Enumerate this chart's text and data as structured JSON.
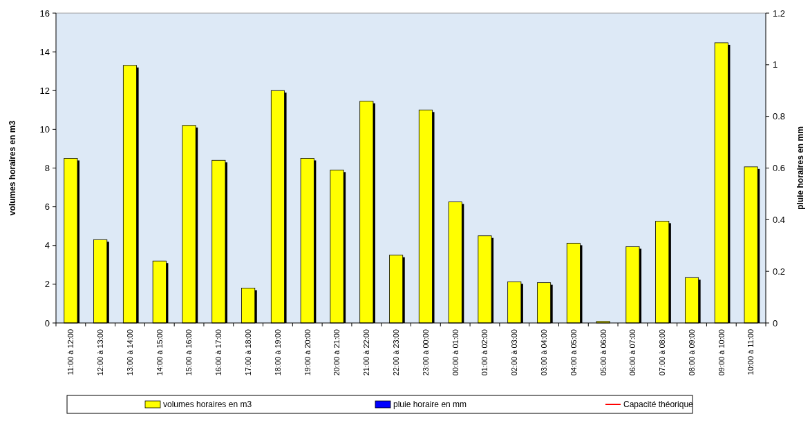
{
  "chart_data": {
    "type": "bar",
    "ylabel": "volumes horaires en m3",
    "y2label": "pluie horaires en mm",
    "categories": [
      "11:00 à 12:00",
      "12:00 à 13:00",
      "13:00 à 14:00",
      "14:00 à 15:00",
      "15:00 à 16:00",
      "16:00 à 17:00",
      "17:00 à 18:00",
      "18:00 à 19:00",
      "19:00 à 20:00",
      "20:00 à 21:00",
      "21:00 à 22:00",
      "22:00 à 23:00",
      "23:00 à 00:00",
      "00:00 à 01:00",
      "01:00 à 02:00",
      "02:00 à 03:00",
      "03:00 à 04:00",
      "04:00 à 05:00",
      "05:00 à 06:00",
      "06:00 à 07:00",
      "07:00 à 08:00",
      "08:00 à 09:00",
      "09:00 à 10:00",
      "10:00 à 11:00"
    ],
    "series": [
      {
        "name": "volumes horaires en m3",
        "color": "#ffff00",
        "values": [
          8.5,
          4.3,
          13.3,
          3.2,
          10.2,
          8.4,
          1.8,
          12.0,
          8.5,
          7.9,
          11.45,
          3.5,
          11.0,
          6.25,
          4.5,
          2.13,
          2.08,
          4.12,
          0.08,
          3.94,
          5.26,
          2.34,
          14.47,
          8.06
        ]
      },
      {
        "name": "pluie horaire en mm",
        "color": "#0000ff",
        "values": [
          null,
          null,
          null,
          null,
          null,
          null,
          null,
          null,
          null,
          null,
          null,
          null,
          null,
          null,
          null,
          null,
          null,
          null,
          null,
          null,
          null,
          null,
          null,
          null
        ]
      },
      {
        "name": "Capacité théorique",
        "type": "line",
        "color": "#ff0000",
        "values": [
          null,
          null,
          null,
          null,
          null,
          null,
          null,
          null,
          null,
          null,
          null,
          null,
          null,
          null,
          null,
          null,
          null,
          null,
          null,
          null,
          null,
          null,
          null,
          null
        ]
      }
    ],
    "ylim": [
      0,
      16
    ],
    "yticks": [
      0,
      2,
      4,
      6,
      8,
      10,
      12,
      14,
      16
    ],
    "y2lim": [
      0,
      1.2
    ],
    "y2ticks": [
      0,
      0.2,
      0.4,
      0.6,
      0.8,
      1,
      1.2
    ],
    "legend": "bottom"
  }
}
